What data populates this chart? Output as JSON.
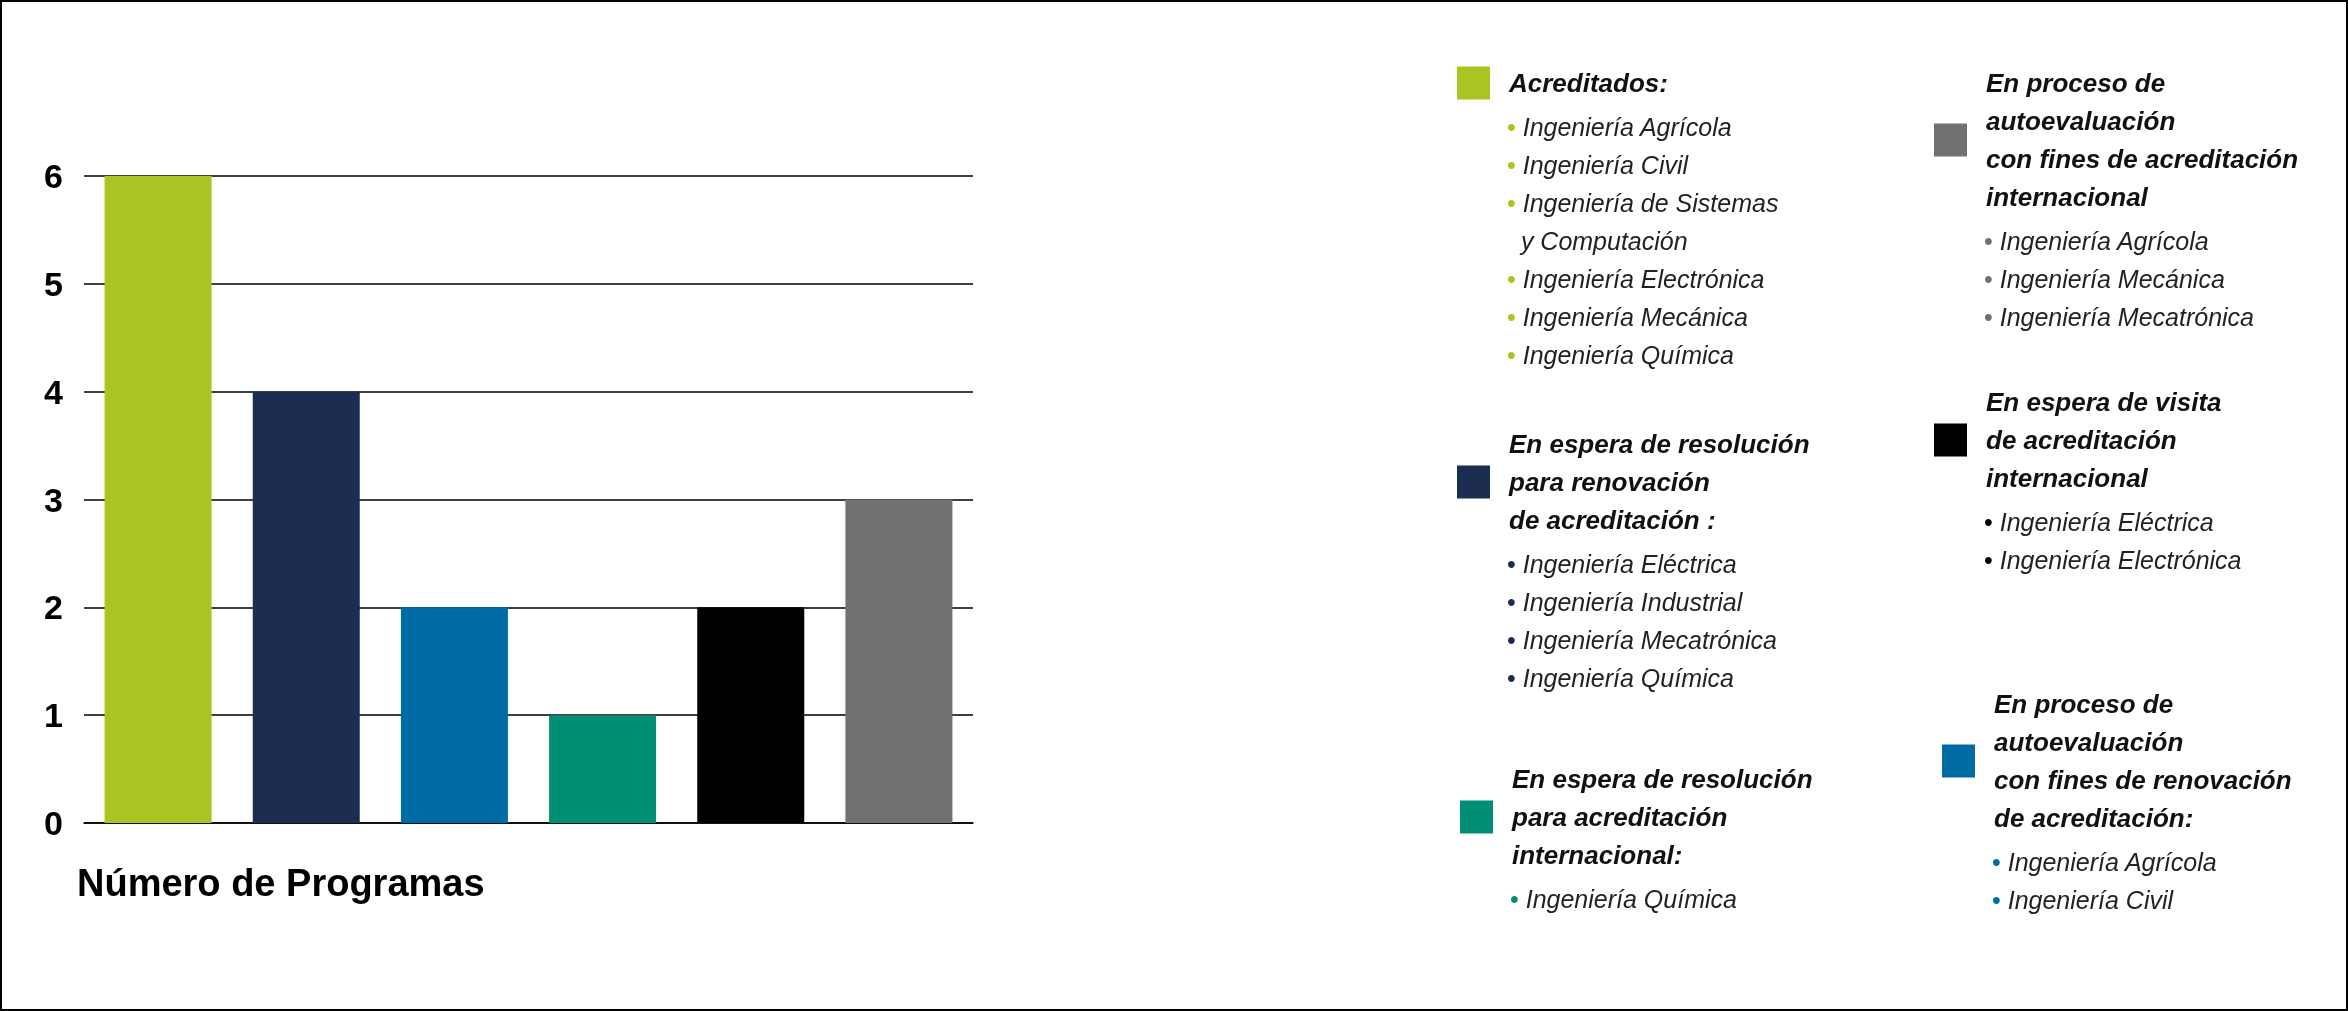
{
  "chart_data": {
    "type": "bar",
    "xlabel": "Número de Programas",
    "categories": [
      null,
      null,
      null,
      null,
      null,
      null
    ],
    "series": [
      {
        "name": "Acreditados:",
        "color": "#a8c521",
        "values": [
          6,
          null,
          null,
          null,
          null,
          null
        ]
      },
      {
        "name": "En espera de resolución\npara renovación\nde acreditación :",
        "color": "#1b2d51",
        "values": [
          null,
          4,
          null,
          null,
          null,
          null
        ]
      },
      {
        "name": "En proceso de\nautoevaluación\ncon fines de renovación\nde acreditación:",
        "color": "#006ca5",
        "values": [
          null,
          null,
          2,
          null,
          null,
          null
        ]
      },
      {
        "name": "En espera de resolución\npara acreditación\ninternacional:",
        "color": "#008e74",
        "values": [
          null,
          null,
          null,
          1,
          null,
          null
        ]
      },
      {
        "name": "En espera de visita\nde acreditación\ninternacional",
        "color": "#000000",
        "values": [
          null,
          null,
          null,
          null,
          2,
          null
        ]
      },
      {
        "name": "En proceso de\nautoevaluación\ncon fines de acreditación\ninternacional",
        "color": "#717174",
        "values": [
          null,
          null,
          null,
          null,
          null,
          3
        ]
      }
    ],
    "annotations": [
      "• Ingeniería Agrícola\n• Ingeniería Civil\n• Ingeniería de Sistemas\n  y Computación\n• Ingeniería Electrónica\n• Ingeniería Mecánica\n• Ingeniería Química",
      "• Ingeniería Eléctrica\n• Ingeniería Industrial\n• Ingeniería Mecatrónica\n• Ingeniería Química",
      "• Ingeniería Agrícola\n• Ingeniería Civil",
      "• Ingeniería Química",
      "• Ingeniería Eléctrica\n• Ingeniería Electrónica",
      "• Ingeniería Agrícola\n• Ingeniería Mecánica\n• Ingeniería Mecatrónica"
    ],
    "ylim": [
      0,
      6
    ],
    "yticks": [
      0,
      1,
      2,
      3,
      4,
      5,
      6
    ],
    "grid": "y",
    "legend": "right"
  }
}
